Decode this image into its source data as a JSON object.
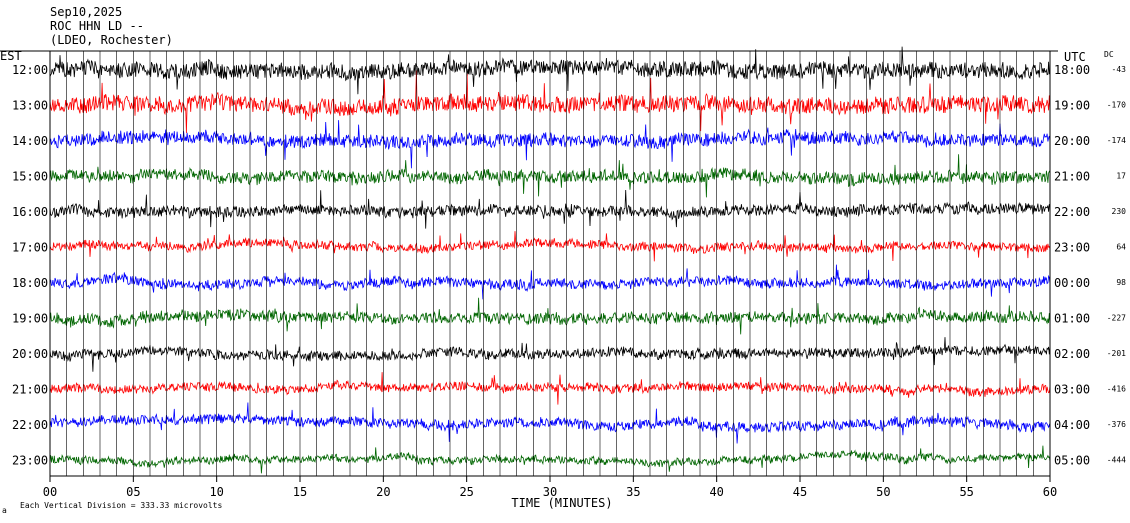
{
  "chart_data": {
    "type": "line",
    "title_lines": [
      "Sep10,2025",
      "ROC HHN LD --",
      "(LDEO, Rochester)"
    ],
    "left_axis_label": "EST",
    "right_axis_label": "UTC",
    "dc_label": "DC",
    "xlabel": "TIME (MINUTES)",
    "xlim": [
      0,
      60
    ],
    "x_ticks": [
      "00",
      "05",
      "10",
      "15",
      "20",
      "25",
      "30",
      "35",
      "40",
      "45",
      "50",
      "55",
      "60"
    ],
    "x_tick_values": [
      0,
      5,
      10,
      15,
      20,
      25,
      30,
      35,
      40,
      45,
      50,
      55,
      60
    ],
    "footnote": "Each Vertical Division = 333.33 microvolts",
    "footnote_mark": "a",
    "grid": "vertical lines every minute",
    "colors": {
      "black": "#000000",
      "red": "#ff0000",
      "blue": "#0000ff",
      "green": "#006600"
    },
    "series": [
      {
        "est": "12:00",
        "utc": "18:00",
        "dc": "-43",
        "color": "#000000",
        "amplitude": 1.3
      },
      {
        "est": "13:00",
        "utc": "19:00",
        "dc": "-170",
        "color": "#ff0000",
        "amplitude": 1.4
      },
      {
        "est": "14:00",
        "utc": "20:00",
        "dc": "-174",
        "color": "#0000ff",
        "amplitude": 1.1
      },
      {
        "est": "15:00",
        "utc": "21:00",
        "dc": "17",
        "color": "#006600",
        "amplitude": 1.0
      },
      {
        "est": "16:00",
        "utc": "22:00",
        "dc": "230",
        "color": "#000000",
        "amplitude": 0.9
      },
      {
        "est": "17:00",
        "utc": "23:00",
        "dc": "64",
        "color": "#ff0000",
        "amplitude": 0.7
      },
      {
        "est": "18:00",
        "utc": "00:00",
        "dc": "98",
        "color": "#0000ff",
        "amplitude": 0.8
      },
      {
        "est": "19:00",
        "utc": "01:00",
        "dc": "-227",
        "color": "#006600",
        "amplitude": 0.9
      },
      {
        "est": "20:00",
        "utc": "02:00",
        "dc": "-201",
        "color": "#000000",
        "amplitude": 0.8
      },
      {
        "est": "21:00",
        "utc": "03:00",
        "dc": "-416",
        "color": "#ff0000",
        "amplitude": 0.7
      },
      {
        "est": "22:00",
        "utc": "04:00",
        "dc": "-376",
        "color": "#0000ff",
        "amplitude": 0.8
      },
      {
        "est": "23:00",
        "utc": "05:00",
        "dc": "-444",
        "color": "#006600",
        "amplitude": 0.6
      }
    ]
  }
}
